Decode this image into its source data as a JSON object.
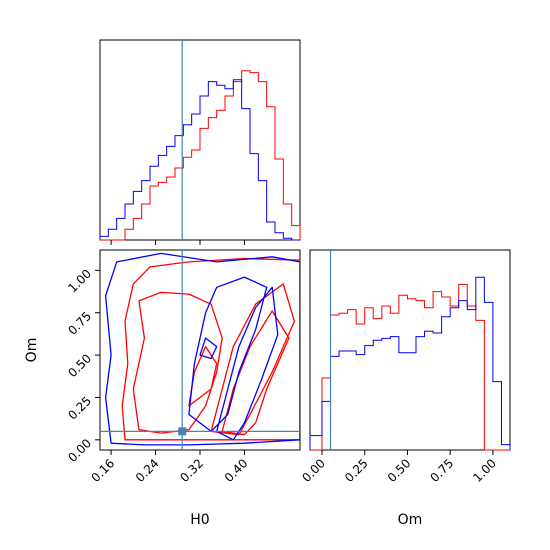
{
  "chart_data": [
    {
      "panel": "H0-marginal",
      "type": "histogram",
      "xlim": [
        0.14,
        0.5
      ],
      "xticks": [
        0.16,
        0.24,
        0.32,
        0.4
      ],
      "truth": 0.288,
      "colors": {
        "red": "#ff0000",
        "blue": "#0000ff",
        "truth": "#4682b4"
      },
      "edges": [
        0.14,
        0.155,
        0.17,
        0.185,
        0.2,
        0.215,
        0.23,
        0.245,
        0.26,
        0.275,
        0.29,
        0.305,
        0.32,
        0.335,
        0.35,
        0.365,
        0.38,
        0.395,
        0.41,
        0.425,
        0.44,
        0.455,
        0.47,
        0.485,
        0.5
      ],
      "series": [
        {
          "color": "red",
          "counts": [
            0.0,
            0.0,
            0.0,
            0.06,
            0.12,
            0.2,
            0.3,
            0.32,
            0.35,
            0.4,
            0.46,
            0.5,
            0.62,
            0.68,
            0.72,
            0.8,
            0.88,
            0.94,
            0.93,
            0.88,
            0.74,
            0.45,
            0.2,
            0.08
          ]
        },
        {
          "color": "blue",
          "counts": [
            0.02,
            0.06,
            0.12,
            0.2,
            0.27,
            0.33,
            0.41,
            0.47,
            0.52,
            0.58,
            0.64,
            0.7,
            0.8,
            0.88,
            0.86,
            0.84,
            0.89,
            0.73,
            0.48,
            0.33,
            0.1,
            0.04,
            0.01,
            0.0
          ]
        }
      ]
    },
    {
      "panel": "Om-marginal",
      "type": "histogram",
      "xlim": [
        -0.07,
        1.1
      ],
      "xticks": [
        0.0,
        0.25,
        0.5,
        0.75,
        1.0
      ],
      "xticklabels": [
        "0.00",
        "0.25",
        "0.50",
        "0.75",
        "1.00"
      ],
      "xlabel": "Om",
      "truth": 0.05,
      "edges": [
        -0.07,
        0.0,
        0.05,
        0.1,
        0.15,
        0.2,
        0.25,
        0.3,
        0.35,
        0.4,
        0.45,
        0.5,
        0.55,
        0.6,
        0.65,
        0.7,
        0.75,
        0.8,
        0.85,
        0.9,
        0.95,
        1.0,
        1.05,
        1.1
      ],
      "series": [
        {
          "color": "red",
          "counts": [
            0.0,
            0.4,
            0.75,
            0.76,
            0.78,
            0.7,
            0.79,
            0.73,
            0.8,
            0.76,
            0.86,
            0.84,
            0.83,
            0.79,
            0.88,
            0.85,
            0.8,
            0.92,
            0.8,
            0.72,
            0.0,
            0.0,
            0.0
          ]
        },
        {
          "color": "blue",
          "counts": [
            0.08,
            0.27,
            0.52,
            0.55,
            0.55,
            0.53,
            0.58,
            0.61,
            0.62,
            0.63,
            0.54,
            0.54,
            0.63,
            0.66,
            0.65,
            0.74,
            0.79,
            0.83,
            0.78,
            0.96,
            0.82,
            0.38,
            0.03
          ]
        }
      ]
    },
    {
      "panel": "H0-Om-joint",
      "type": "contour",
      "xlim": [
        0.14,
        0.5
      ],
      "ylim": [
        -0.06,
        1.12
      ],
      "xticks": [
        0.16,
        0.24,
        0.32,
        0.4
      ],
      "xticklabels": [
        "0.16",
        "0.24",
        "0.32",
        "0.40"
      ],
      "yticks": [
        0.0,
        0.25,
        0.5,
        0.75,
        1.0
      ],
      "yticklabels": [
        "0.00",
        "0.25",
        "0.50",
        "0.75",
        "1.00"
      ],
      "xlabel": "H0",
      "ylabel": "Om",
      "truth": [
        0.288,
        0.05
      ],
      "contours": [
        {
          "color": "red",
          "points": [
            [
              0.185,
              0.0
            ],
            [
              0.18,
              0.2
            ],
            [
              0.19,
              0.45
            ],
            [
              0.185,
              0.7
            ],
            [
              0.2,
              0.92
            ],
            [
              0.23,
              1.02
            ],
            [
              0.3,
              1.05
            ],
            [
              0.4,
              1.07
            ],
            [
              0.5,
              1.06
            ],
            [
              0.5,
              0.0
            ],
            [
              0.45,
              0.0
            ],
            [
              0.4,
              0.0
            ],
            [
              0.3,
              0.0
            ],
            [
              0.25,
              0.0
            ]
          ]
        },
        {
          "color": "red",
          "points": [
            [
              0.21,
              0.06
            ],
            [
              0.2,
              0.3
            ],
            [
              0.22,
              0.6
            ],
            [
              0.21,
              0.82
            ],
            [
              0.25,
              0.87
            ],
            [
              0.3,
              0.86
            ],
            [
              0.34,
              0.8
            ],
            [
              0.36,
              0.6
            ],
            [
              0.35,
              0.4
            ],
            [
              0.33,
              0.2
            ],
            [
              0.3,
              0.06
            ],
            [
              0.25,
              0.04
            ]
          ]
        },
        {
          "color": "red",
          "points": [
            [
              0.34,
              0.05
            ],
            [
              0.36,
              0.3
            ],
            [
              0.38,
              0.55
            ],
            [
              0.42,
              0.8
            ],
            [
              0.47,
              0.92
            ],
            [
              0.49,
              0.7
            ],
            [
              0.45,
              0.4
            ],
            [
              0.41,
              0.15
            ],
            [
              0.39,
              0.03
            ]
          ]
        },
        {
          "color": "red",
          "points": [
            [
              0.36,
              0.05
            ],
            [
              0.38,
              0.3
            ],
            [
              0.41,
              0.55
            ],
            [
              0.45,
              0.76
            ],
            [
              0.48,
              0.6
            ],
            [
              0.44,
              0.3
            ],
            [
              0.42,
              0.1
            ],
            [
              0.4,
              0.03
            ]
          ]
        },
        {
          "color": "red",
          "points": [
            [
              0.3,
              0.2
            ],
            [
              0.31,
              0.4
            ],
            [
              0.33,
              0.55
            ],
            [
              0.35,
              0.45
            ],
            [
              0.34,
              0.3
            ]
          ]
        },
        {
          "color": "blue",
          "points": [
            [
              0.16,
              -0.02
            ],
            [
              0.15,
              0.25
            ],
            [
              0.16,
              0.5
            ],
            [
              0.15,
              0.85
            ],
            [
              0.17,
              1.05
            ],
            [
              0.25,
              1.1
            ],
            [
              0.35,
              1.05
            ],
            [
              0.45,
              1.08
            ],
            [
              0.5,
              1.05
            ],
            [
              0.5,
              0.0
            ],
            [
              0.4,
              -0.02
            ],
            [
              0.3,
              -0.03
            ],
            [
              0.22,
              -0.03
            ]
          ]
        },
        {
          "color": "blue",
          "points": [
            [
              0.3,
              0.15
            ],
            [
              0.31,
              0.45
            ],
            [
              0.33,
              0.75
            ],
            [
              0.35,
              0.9
            ],
            [
              0.4,
              0.96
            ],
            [
              0.44,
              0.9
            ],
            [
              0.42,
              0.65
            ],
            [
              0.39,
              0.4
            ],
            [
              0.37,
              0.15
            ],
            [
              0.34,
              0.05
            ]
          ]
        },
        {
          "color": "blue",
          "points": [
            [
              0.35,
              0.05
            ],
            [
              0.37,
              0.3
            ],
            [
              0.39,
              0.55
            ],
            [
              0.42,
              0.78
            ],
            [
              0.45,
              0.9
            ],
            [
              0.46,
              0.62
            ],
            [
              0.43,
              0.35
            ],
            [
              0.4,
              0.1
            ],
            [
              0.38,
              0.0
            ]
          ]
        },
        {
          "color": "blue",
          "points": [
            [
              0.32,
              0.5
            ],
            [
              0.33,
              0.6
            ],
            [
              0.35,
              0.55
            ],
            [
              0.34,
              0.48
            ]
          ]
        }
      ]
    }
  ]
}
